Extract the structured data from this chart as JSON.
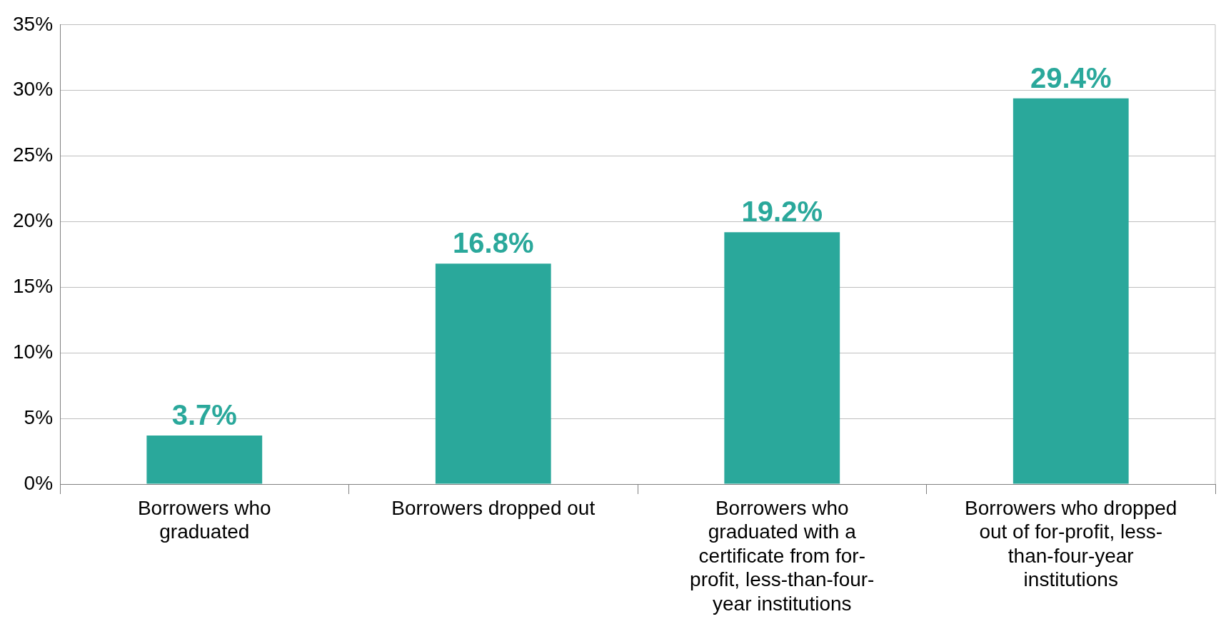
{
  "chart_data": {
    "type": "bar",
    "categories": [
      "Borrowers who graduated",
      "Borrowers dropped out",
      "Borrowers who graduated with a certificate from for-profit, less-than-four-year institutions",
      "Borrowers who dropped out of for-profit, less-than-four-year institutions"
    ],
    "values": [
      3.7,
      16.8,
      19.2,
      29.4
    ],
    "value_labels": [
      "3.7%",
      "16.8%",
      "19.2%",
      "29.4%"
    ],
    "color": "#2aa89b",
    "ylim": [
      0,
      35
    ],
    "yticks": [
      {
        "value": 0,
        "label": "0%"
      },
      {
        "value": 5,
        "label": "5%"
      },
      {
        "value": 10,
        "label": "10%"
      },
      {
        "value": 15,
        "label": "15%"
      },
      {
        "value": 20,
        "label": "20%"
      },
      {
        "value": 25,
        "label": "25%"
      },
      {
        "value": 30,
        "label": "30%"
      },
      {
        "value": 35,
        "label": "35%"
      }
    ],
    "grid": "y",
    "legend": false
  }
}
